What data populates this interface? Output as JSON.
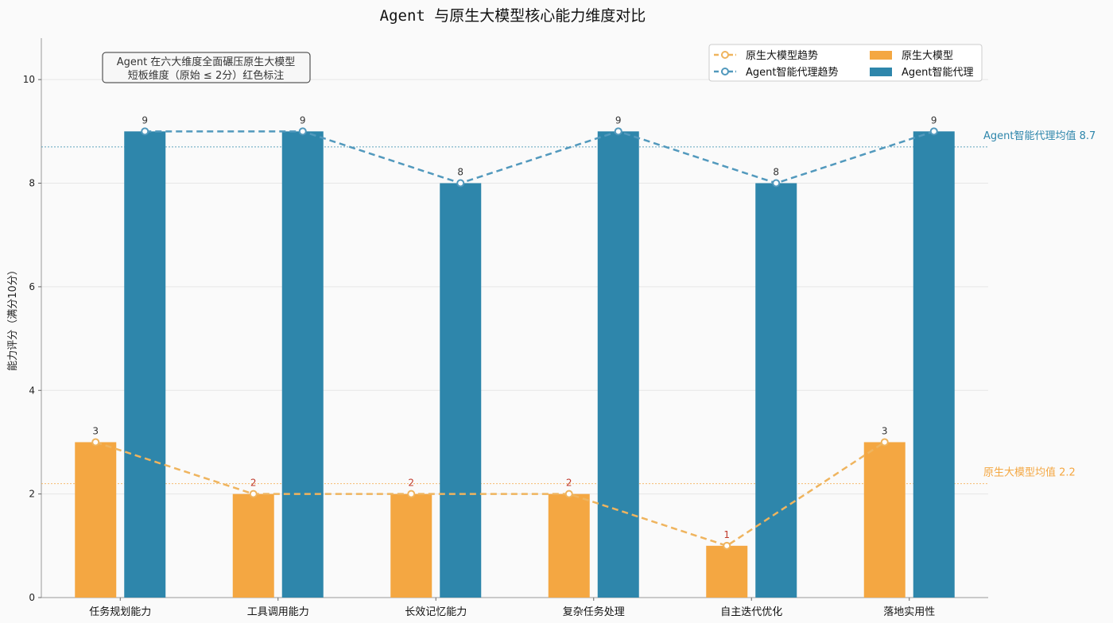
{
  "chart_data": {
    "type": "bar",
    "title": "Agent 与原生大模型核心能力维度对比",
    "ylabel": "能力评分（满分10分）",
    "xlabel": "",
    "ylim": [
      0,
      10.8
    ],
    "yticks": [
      0,
      2,
      4,
      6,
      8,
      10
    ],
    "grid": "horizontal",
    "legend_position": "top-right",
    "categories": [
      "任务规划能力",
      "工具调用能力",
      "长效记忆能力",
      "复杂任务处理",
      "自主迭代优化",
      "落地实用性"
    ],
    "series": [
      {
        "name": "原生大模型",
        "color": "#f4a742",
        "values": [
          3,
          2,
          2,
          2,
          1,
          3
        ]
      },
      {
        "name": "Agent智能代理",
        "color": "#2e86ab",
        "values": [
          9,
          9,
          8,
          9,
          8,
          9
        ]
      }
    ],
    "trend_lines": [
      {
        "name": "原生大模型趋势",
        "color": "#efb45e",
        "values": [
          3,
          2,
          2,
          2,
          1,
          3
        ]
      },
      {
        "name": "Agent智能代理趋势",
        "color": "#5299bd",
        "values": [
          9,
          9,
          8,
          9,
          8,
          9
        ]
      }
    ],
    "mean_lines": [
      {
        "label": "Agent智能代理均值 8.7",
        "value": 8.7,
        "color": "#2e86ab"
      },
      {
        "label": "原生大模型均值 2.2",
        "value": 2.2,
        "color": "#f4a742"
      }
    ],
    "annotation_lines": [
      "Agent 在六大维度全面碾压原生大模型",
      "短板维度（原始 ≤ 2分）红色标注"
    ],
    "low_threshold": 2,
    "low_label_color": "#c0392b",
    "label_color": "#333333"
  }
}
